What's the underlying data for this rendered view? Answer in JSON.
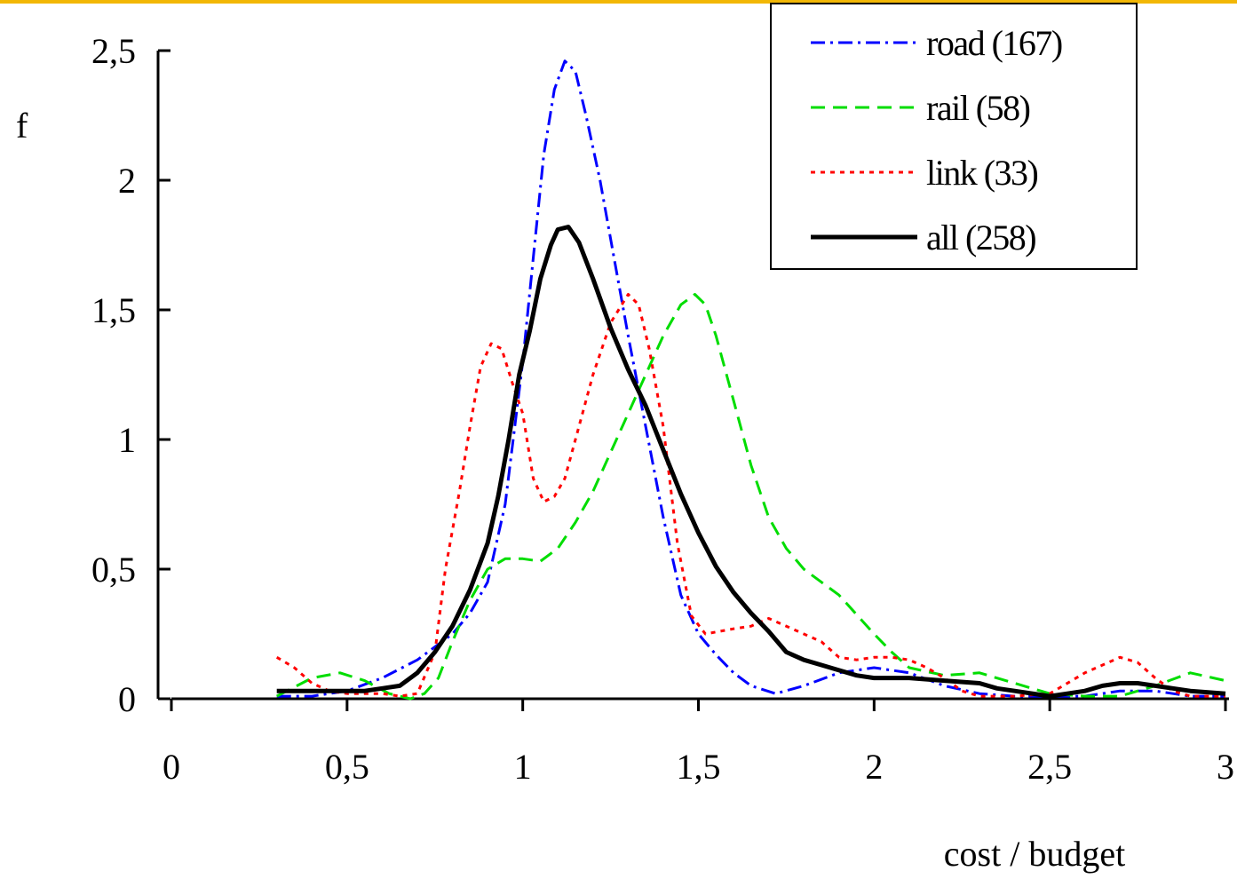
{
  "chart_data": {
    "type": "line",
    "title": "",
    "xlabel": "cost / budget",
    "ylabel": "f",
    "xlim": [
      0,
      3
    ],
    "ylim": [
      0,
      2.5
    ],
    "x_ticks": [
      "0",
      "0,5",
      "1",
      "1,5",
      "2",
      "2,5",
      "3"
    ],
    "y_ticks": [
      "0",
      "0,5",
      "1",
      "1,5",
      "2",
      "2,5"
    ],
    "grid": false,
    "legend_position": "top-right",
    "series": [
      {
        "name": "road (167)",
        "color": "#0000ff",
        "style": "dash-dot",
        "points": [
          [
            0.3,
            0.01
          ],
          [
            0.4,
            0.01
          ],
          [
            0.5,
            0.03
          ],
          [
            0.6,
            0.08
          ],
          [
            0.7,
            0.15
          ],
          [
            0.8,
            0.25
          ],
          [
            0.85,
            0.33
          ],
          [
            0.9,
            0.45
          ],
          [
            0.95,
            0.75
          ],
          [
            1.0,
            1.3
          ],
          [
            1.03,
            1.7
          ],
          [
            1.06,
            2.1
          ],
          [
            1.09,
            2.35
          ],
          [
            1.12,
            2.46
          ],
          [
            1.15,
            2.42
          ],
          [
            1.18,
            2.25
          ],
          [
            1.22,
            2.0
          ],
          [
            1.26,
            1.7
          ],
          [
            1.3,
            1.4
          ],
          [
            1.35,
            1.05
          ],
          [
            1.4,
            0.7
          ],
          [
            1.45,
            0.4
          ],
          [
            1.5,
            0.25
          ],
          [
            1.55,
            0.17
          ],
          [
            1.6,
            0.1
          ],
          [
            1.65,
            0.05
          ],
          [
            1.72,
            0.02
          ],
          [
            1.8,
            0.05
          ],
          [
            1.9,
            0.1
          ],
          [
            2.0,
            0.12
          ],
          [
            2.1,
            0.1
          ],
          [
            2.2,
            0.05
          ],
          [
            2.3,
            0.02
          ],
          [
            2.4,
            0.01
          ],
          [
            2.5,
            0.01
          ],
          [
            2.6,
            0.01
          ],
          [
            2.7,
            0.03
          ],
          [
            2.8,
            0.03
          ],
          [
            2.9,
            0.01
          ],
          [
            3.0,
            0.01
          ]
        ]
      },
      {
        "name": "rail (58)",
        "color": "#00dd00",
        "style": "dashed",
        "points": [
          [
            0.3,
            0.01
          ],
          [
            0.4,
            0.08
          ],
          [
            0.48,
            0.1
          ],
          [
            0.55,
            0.07
          ],
          [
            0.62,
            0.02
          ],
          [
            0.68,
            0.0
          ],
          [
            0.72,
            0.02
          ],
          [
            0.76,
            0.08
          ],
          [
            0.8,
            0.22
          ],
          [
            0.85,
            0.38
          ],
          [
            0.9,
            0.5
          ],
          [
            0.95,
            0.54
          ],
          [
            1.0,
            0.54
          ],
          [
            1.05,
            0.53
          ],
          [
            1.1,
            0.58
          ],
          [
            1.15,
            0.68
          ],
          [
            1.2,
            0.8
          ],
          [
            1.25,
            0.95
          ],
          [
            1.3,
            1.1
          ],
          [
            1.35,
            1.25
          ],
          [
            1.4,
            1.4
          ],
          [
            1.45,
            1.52
          ],
          [
            1.49,
            1.56
          ],
          [
            1.52,
            1.52
          ],
          [
            1.55,
            1.4
          ],
          [
            1.6,
            1.15
          ],
          [
            1.65,
            0.9
          ],
          [
            1.7,
            0.7
          ],
          [
            1.75,
            0.58
          ],
          [
            1.8,
            0.5
          ],
          [
            1.9,
            0.4
          ],
          [
            2.0,
            0.25
          ],
          [
            2.05,
            0.18
          ],
          [
            2.1,
            0.12
          ],
          [
            2.2,
            0.09
          ],
          [
            2.3,
            0.1
          ],
          [
            2.4,
            0.06
          ],
          [
            2.5,
            0.02
          ],
          [
            2.6,
            0.01
          ],
          [
            2.7,
            0.01
          ],
          [
            2.8,
            0.05
          ],
          [
            2.9,
            0.1
          ],
          [
            3.0,
            0.07
          ]
        ]
      },
      {
        "name": "link (33)",
        "color": "#ff0000",
        "style": "dotted",
        "points": [
          [
            0.3,
            0.16
          ],
          [
            0.35,
            0.12
          ],
          [
            0.4,
            0.06
          ],
          [
            0.45,
            0.03
          ],
          [
            0.5,
            0.02
          ],
          [
            0.55,
            0.02
          ],
          [
            0.6,
            0.02
          ],
          [
            0.65,
            0.01
          ],
          [
            0.7,
            0.02
          ],
          [
            0.75,
            0.18
          ],
          [
            0.78,
            0.5
          ],
          [
            0.82,
            0.8
          ],
          [
            0.85,
            1.05
          ],
          [
            0.88,
            1.28
          ],
          [
            0.91,
            1.37
          ],
          [
            0.94,
            1.35
          ],
          [
            0.97,
            1.22
          ],
          [
            1.0,
            1.1
          ],
          [
            1.03,
            0.85
          ],
          [
            1.06,
            0.76
          ],
          [
            1.09,
            0.78
          ],
          [
            1.12,
            0.85
          ],
          [
            1.15,
            1.0
          ],
          [
            1.2,
            1.25
          ],
          [
            1.25,
            1.45
          ],
          [
            1.3,
            1.56
          ],
          [
            1.33,
            1.52
          ],
          [
            1.36,
            1.35
          ],
          [
            1.4,
            1.05
          ],
          [
            1.44,
            0.6
          ],
          [
            1.48,
            0.32
          ],
          [
            1.52,
            0.25
          ],
          [
            1.56,
            0.26
          ],
          [
            1.6,
            0.27
          ],
          [
            1.65,
            0.28
          ],
          [
            1.7,
            0.31
          ],
          [
            1.75,
            0.28
          ],
          [
            1.8,
            0.25
          ],
          [
            1.85,
            0.22
          ],
          [
            1.9,
            0.16
          ],
          [
            1.95,
            0.15
          ],
          [
            2.0,
            0.16
          ],
          [
            2.05,
            0.16
          ],
          [
            2.1,
            0.15
          ],
          [
            2.15,
            0.12
          ],
          [
            2.2,
            0.08
          ],
          [
            2.25,
            0.03
          ],
          [
            2.3,
            0.01
          ],
          [
            2.4,
            0.01
          ],
          [
            2.5,
            0.02
          ],
          [
            2.6,
            0.1
          ],
          [
            2.7,
            0.16
          ],
          [
            2.75,
            0.14
          ],
          [
            2.8,
            0.08
          ],
          [
            2.85,
            0.03
          ],
          [
            2.9,
            0.01
          ],
          [
            3.0,
            0.01
          ]
        ]
      },
      {
        "name": "all (258)",
        "color": "#000000",
        "style": "solid",
        "points": [
          [
            0.3,
            0.03
          ],
          [
            0.4,
            0.03
          ],
          [
            0.5,
            0.03
          ],
          [
            0.55,
            0.03
          ],
          [
            0.6,
            0.04
          ],
          [
            0.65,
            0.05
          ],
          [
            0.7,
            0.1
          ],
          [
            0.75,
            0.18
          ],
          [
            0.8,
            0.28
          ],
          [
            0.85,
            0.42
          ],
          [
            0.9,
            0.6
          ],
          [
            0.93,
            0.78
          ],
          [
            0.96,
            1.0
          ],
          [
            0.99,
            1.25
          ],
          [
            1.02,
            1.42
          ],
          [
            1.05,
            1.62
          ],
          [
            1.08,
            1.75
          ],
          [
            1.1,
            1.81
          ],
          [
            1.13,
            1.82
          ],
          [
            1.16,
            1.76
          ],
          [
            1.2,
            1.62
          ],
          [
            1.25,
            1.43
          ],
          [
            1.3,
            1.27
          ],
          [
            1.35,
            1.13
          ],
          [
            1.4,
            0.96
          ],
          [
            1.45,
            0.79
          ],
          [
            1.5,
            0.64
          ],
          [
            1.55,
            0.51
          ],
          [
            1.6,
            0.41
          ],
          [
            1.65,
            0.33
          ],
          [
            1.7,
            0.26
          ],
          [
            1.75,
            0.18
          ],
          [
            1.8,
            0.15
          ],
          [
            1.85,
            0.13
          ],
          [
            1.9,
            0.11
          ],
          [
            1.95,
            0.09
          ],
          [
            2.0,
            0.08
          ],
          [
            2.1,
            0.08
          ],
          [
            2.2,
            0.07
          ],
          [
            2.3,
            0.06
          ],
          [
            2.35,
            0.04
          ],
          [
            2.4,
            0.03
          ],
          [
            2.5,
            0.01
          ],
          [
            2.55,
            0.02
          ],
          [
            2.6,
            0.03
          ],
          [
            2.65,
            0.05
          ],
          [
            2.7,
            0.06
          ],
          [
            2.75,
            0.06
          ],
          [
            2.8,
            0.05
          ],
          [
            2.85,
            0.04
          ],
          [
            2.9,
            0.03
          ],
          [
            3.0,
            0.02
          ]
        ]
      }
    ]
  }
}
